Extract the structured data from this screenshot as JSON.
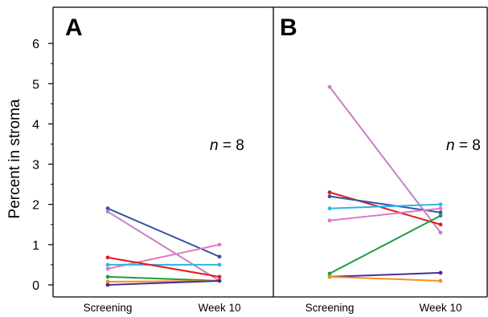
{
  "figure": {
    "ylabel": "Percent in stroma",
    "ylim": [
      -0.3,
      6.9
    ],
    "yticks": [
      "0",
      "1",
      "2",
      "3",
      "4",
      "5",
      "6"
    ]
  },
  "chart_data": [
    {
      "type": "line",
      "panel_label": "A",
      "annotation": {
        "italic": "n",
        "rest": " = 8"
      },
      "categories": [
        "Screening",
        "Week 10"
      ],
      "ylabel": "Percent in stroma",
      "ylim": [
        -0.3,
        6.9
      ],
      "grid": false,
      "series": [
        {
          "color": "#3653a3",
          "values": [
            1.9,
            0.7
          ]
        },
        {
          "color": "#c77fc4",
          "values": [
            1.82,
            0.1
          ]
        },
        {
          "color": "#e377c2",
          "values": [
            0.4,
            1.0
          ]
        },
        {
          "color": "#29b6e8",
          "values": [
            0.5,
            0.5
          ]
        },
        {
          "color": "#e31a1c",
          "values": [
            0.68,
            0.2
          ]
        },
        {
          "color": "#1a9e3f",
          "values": [
            0.2,
            0.1
          ]
        },
        {
          "color": "#ff8c1a",
          "values": [
            0.08,
            0.1
          ]
        },
        {
          "color": "#4b2c91",
          "values": [
            0.0,
            0.1
          ]
        }
      ]
    },
    {
      "type": "line",
      "panel_label": "B",
      "annotation": {
        "italic": "n",
        "rest": " = 8"
      },
      "categories": [
        "Screening",
        "Week 10"
      ],
      "ylabel": "",
      "ylim": [
        -0.3,
        6.9
      ],
      "grid": false,
      "series": [
        {
          "color": "#c77fc4",
          "values": [
            4.92,
            1.3
          ]
        },
        {
          "color": "#e31a1c",
          "values": [
            2.3,
            1.5
          ]
        },
        {
          "color": "#3653a3",
          "values": [
            2.2,
            1.8
          ]
        },
        {
          "color": "#29b6e8",
          "values": [
            1.9,
            2.0
          ]
        },
        {
          "color": "#e377c2",
          "values": [
            1.6,
            1.9
          ]
        },
        {
          "color": "#1a9e3f",
          "values": [
            0.28,
            1.72
          ]
        },
        {
          "color": "#4b2c91",
          "values": [
            0.2,
            0.3
          ]
        },
        {
          "color": "#ff8c1a",
          "values": [
            0.2,
            0.1
          ]
        }
      ]
    }
  ]
}
